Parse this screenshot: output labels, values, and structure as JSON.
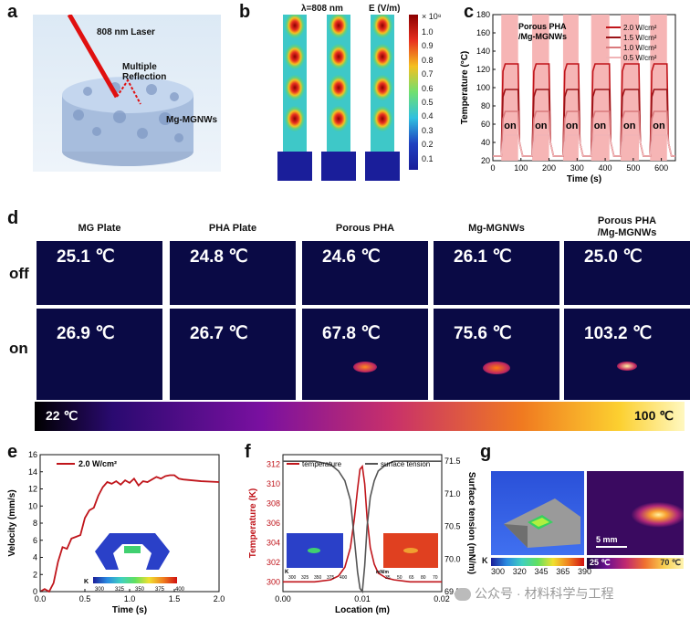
{
  "panel_labels": {
    "a": "a",
    "b": "b",
    "c": "c",
    "d": "d",
    "e": "e",
    "f": "f",
    "g": "g"
  },
  "panel_a": {
    "laser": "808 nm Laser",
    "reflection": "Multiple\nReflection",
    "material": "Mg-MGNWs"
  },
  "panel_b": {
    "title_left": "λ=808 nm",
    "title_right": "E (V/m)",
    "scale_exp": "× 10⁸",
    "colorbar_ticks": [
      "1.0",
      "0.9",
      "0.8",
      "0.7",
      "0.6",
      "0.5",
      "0.4",
      "0.3",
      "0.2",
      "0.1"
    ]
  },
  "panel_c": {
    "sample_label": "Porous PHA\n/Mg-MGNWs",
    "on_label": "on",
    "legend": [
      "2.0 W/cm²",
      "1.5 W/cm²",
      "1.0 W/cm²",
      "0.5 W/cm²"
    ],
    "legend_colors": [
      "#c0151b",
      "#9a1418",
      "#d97a7d",
      "#f0b4b6"
    ],
    "xlabel": "Time (s)",
    "ylabel": "Temperature (°C)",
    "xticks": [
      "0",
      "100",
      "200",
      "300",
      "400",
      "500",
      "600"
    ],
    "yticks": [
      "20",
      "40",
      "60",
      "80",
      "100",
      "120",
      "140",
      "160",
      "180"
    ]
  },
  "panel_d": {
    "columns": [
      "MG Plate",
      "PHA Plate",
      "Porous PHA",
      "Mg-MGNWs",
      "Porous PHA\n/Mg-MGNWs"
    ],
    "row_off": "off",
    "row_on": "on",
    "off_temps": [
      "25.1 ℃",
      "24.8 ℃",
      "24.6 ℃",
      "26.1 ℃",
      "25.0 ℃"
    ],
    "on_temps": [
      "26.9 ℃",
      "26.7 ℃",
      "67.8 ℃",
      "75.6 ℃",
      "103.2 ℃"
    ],
    "scale_min": "22 ℃",
    "scale_max": "100 ℃"
  },
  "panel_e": {
    "legend": "2.0 W/cm²",
    "xlabel": "Time (s)",
    "ylabel": "Velocity (mm/s)",
    "cbar_unit": "K",
    "cbar_ticks": [
      "300",
      "325",
      "350",
      "375",
      "400"
    ],
    "chart_data": {
      "type": "line",
      "title": "",
      "xlabel": "Time (s)",
      "ylabel": "Velocity (mm/s)",
      "xlim": [
        0,
        2.0
      ],
      "ylim": [
        0,
        16
      ],
      "xticks": [
        "0.0",
        "0.5",
        "1.0",
        "1.5",
        "2.0"
      ],
      "yticks": [
        "0",
        "2",
        "4",
        "6",
        "8",
        "10",
        "12",
        "14",
        "16"
      ],
      "series": [
        {
          "name": "2.0 W/cm²",
          "color": "#c0151b",
          "x": [
            0,
            0.05,
            0.1,
            0.15,
            0.2,
            0.25,
            0.3,
            0.35,
            0.4,
            0.45,
            0.5,
            0.55,
            0.6,
            0.65,
            0.7,
            0.75,
            0.8,
            0.85,
            0.9,
            0.95,
            1.0,
            1.05,
            1.1,
            1.15,
            1.2,
            1.25,
            1.3,
            1.35,
            1.4,
            1.45,
            1.5,
            1.55,
            1.6,
            1.8,
            2.0
          ],
          "y": [
            0,
            0.3,
            0.0,
            1.0,
            3.5,
            5.2,
            5.0,
            6.2,
            6.4,
            6.6,
            8.6,
            9.5,
            9.8,
            11.2,
            12.2,
            12.8,
            12.6,
            12.9,
            12.5,
            13.0,
            12.7,
            13.2,
            12.4,
            12.9,
            12.8,
            13.1,
            13.4,
            13.2,
            13.5,
            13.6,
            13.6,
            13.2,
            13.1,
            12.9,
            12.8
          ]
        }
      ]
    }
  },
  "panel_f": {
    "legend_temp": "temperature",
    "legend_tension": "surface tension",
    "xlabel": "Location (m)",
    "ylabel_left": "Temperature (K)",
    "ylabel_right": "Surface tension (mN/m)",
    "cbar_unit_left": "K",
    "cbar_ticks_left": [
      "300",
      "325",
      "350",
      "375",
      "400"
    ],
    "cbar_unit_right": "mN/m",
    "cbar_ticks_right": [
      "35",
      "50",
      "65",
      "80",
      "70"
    ],
    "chart_data": {
      "type": "line",
      "title": "",
      "xlabel": "Location (m)",
      "xlim": [
        0,
        0.02
      ],
      "ylim_left": [
        299,
        313
      ],
      "ylim_right": [
        69.5,
        71.6
      ],
      "xticks": [
        "0.00",
        "0.01",
        "0.02"
      ],
      "yticks_left": [
        "300",
        "302",
        "304",
        "306",
        "308",
        "310",
        "312"
      ],
      "yticks_right": [
        "69.5",
        "70.0",
        "70.5",
        "71.0",
        "71.5"
      ],
      "series": [
        {
          "name": "temperature",
          "axis": "left",
          "color": "#c0151b",
          "x": [
            0,
            0.004,
            0.006,
            0.007,
            0.0078,
            0.0085,
            0.009,
            0.0094,
            0.0097,
            0.01,
            0.0103,
            0.0106,
            0.011,
            0.0115,
            0.012,
            0.013,
            0.014,
            0.016,
            0.02
          ],
          "y": [
            300,
            300,
            300.2,
            300.6,
            301.5,
            303.5,
            306.5,
            309.5,
            311.5,
            311.8,
            310,
            306.5,
            303.5,
            301.8,
            300.9,
            300.4,
            300.2,
            300,
            300
          ]
        },
        {
          "name": "surface tension",
          "axis": "right",
          "color": "#555555",
          "x": [
            0,
            0.004,
            0.006,
            0.007,
            0.0078,
            0.0085,
            0.009,
            0.0094,
            0.0097,
            0.01,
            0.0103,
            0.0106,
            0.011,
            0.0115,
            0.012,
            0.013,
            0.014,
            0.016,
            0.02
          ],
          "y": [
            71.5,
            71.5,
            71.45,
            71.35,
            71.2,
            70.9,
            70.3,
            69.8,
            69.55,
            69.5,
            69.9,
            70.5,
            70.95,
            71.2,
            71.35,
            71.45,
            71.5,
            71.5,
            71.5
          ]
        }
      ]
    }
  },
  "panel_g": {
    "cbar_ticks": [
      "300",
      "320",
      "345",
      "365",
      "390"
    ],
    "cbar_unit": "K",
    "scalebar": "5 mm",
    "thermal_min": "25 ℃",
    "thermal_max": "70 ℃"
  },
  "watermark": "公众号 · 材料科学与工程"
}
